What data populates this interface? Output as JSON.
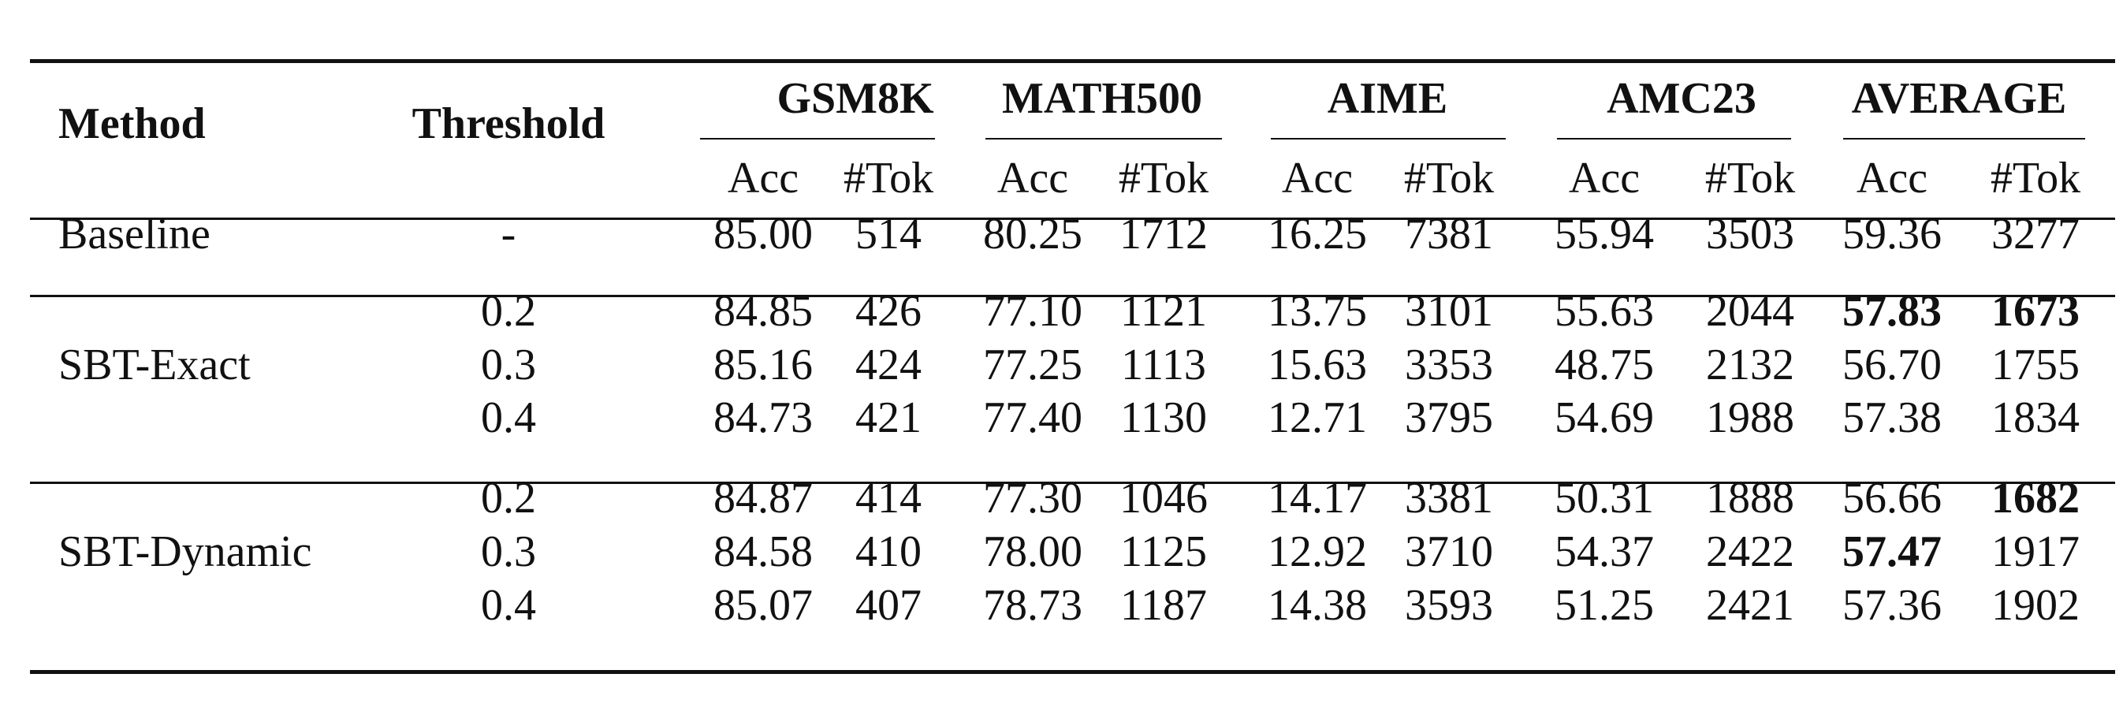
{
  "table": {
    "method_header": "Method",
    "threshold_header": "Threshold",
    "groups": [
      {
        "name": "GSM8K",
        "sub": [
          "Acc",
          "#Tok"
        ]
      },
      {
        "name": "MATH500",
        "sub": [
          "Acc",
          "#Tok"
        ]
      },
      {
        "name": "AIME",
        "sub": [
          "Acc",
          "#Tok"
        ]
      },
      {
        "name": "AMC23",
        "sub": [
          "Acc",
          "#Tok"
        ]
      },
      {
        "name": "AVERAGE",
        "sub": [
          "Acc",
          "#Tok"
        ]
      }
    ],
    "sections": [
      {
        "method": "Baseline",
        "rows": [
          {
            "threshold": "-",
            "values": [
              "85.00",
              "514",
              "80.25",
              "1712",
              "16.25",
              "7381",
              "55.94",
              "3503",
              "59.36",
              "3277"
            ],
            "bold": []
          }
        ]
      },
      {
        "method": "SBT-Exact",
        "rows": [
          {
            "threshold": "0.2",
            "values": [
              "84.85",
              "426",
              "77.10",
              "1121",
              "13.75",
              "3101",
              "55.63",
              "2044",
              "57.83",
              "1673"
            ],
            "bold": [
              8,
              9
            ]
          },
          {
            "threshold": "0.3",
            "values": [
              "85.16",
              "424",
              "77.25",
              "1113",
              "15.63",
              "3353",
              "48.75",
              "2132",
              "56.70",
              "1755"
            ],
            "bold": []
          },
          {
            "threshold": "0.4",
            "values": [
              "84.73",
              "421",
              "77.40",
              "1130",
              "12.71",
              "3795",
              "54.69",
              "1988",
              "57.38",
              "1834"
            ],
            "bold": []
          }
        ]
      },
      {
        "method": "SBT-Dynamic",
        "rows": [
          {
            "threshold": "0.2",
            "values": [
              "84.87",
              "414",
              "77.30",
              "1046",
              "14.17",
              "3381",
              "50.31",
              "1888",
              "56.66",
              "1682"
            ],
            "bold": [
              9
            ]
          },
          {
            "threshold": "0.3",
            "values": [
              "84.58",
              "410",
              "78.00",
              "1125",
              "12.92",
              "3710",
              "54.37",
              "2422",
              "57.47",
              "1917"
            ],
            "bold": [
              8
            ]
          },
          {
            "threshold": "0.4",
            "values": [
              "85.07",
              "407",
              "78.73",
              "1187",
              "14.38",
              "3593",
              "51.25",
              "2421",
              "57.36",
              "1902"
            ],
            "bold": []
          }
        ]
      }
    ]
  }
}
